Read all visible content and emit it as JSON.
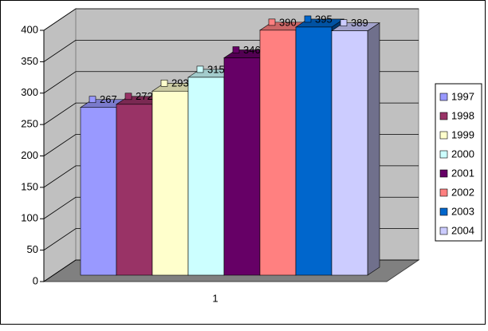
{
  "chart_data": {
    "type": "bar3d",
    "categories": [
      "1"
    ],
    "series": [
      {
        "name": "1997",
        "color": "#9999ff",
        "values": [
          267
        ]
      },
      {
        "name": "1998",
        "color": "#993366",
        "values": [
          272
        ]
      },
      {
        "name": "1999",
        "color": "#ffffcc",
        "values": [
          293
        ]
      },
      {
        "name": "2000",
        "color": "#ccffff",
        "values": [
          315
        ]
      },
      {
        "name": "2001",
        "color": "#660066",
        "values": [
          346
        ]
      },
      {
        "name": "2002",
        "color": "#ff8080",
        "values": [
          390
        ]
      },
      {
        "name": "2003",
        "color": "#0066cc",
        "values": [
          395
        ]
      },
      {
        "name": "2004",
        "color": "#ccccff",
        "values": [
          389
        ]
      }
    ],
    "ylim": [
      0,
      400
    ],
    "yticks": [
      0,
      50,
      100,
      150,
      200,
      250,
      300,
      350,
      400
    ],
    "grid": true,
    "legend": "right"
  }
}
